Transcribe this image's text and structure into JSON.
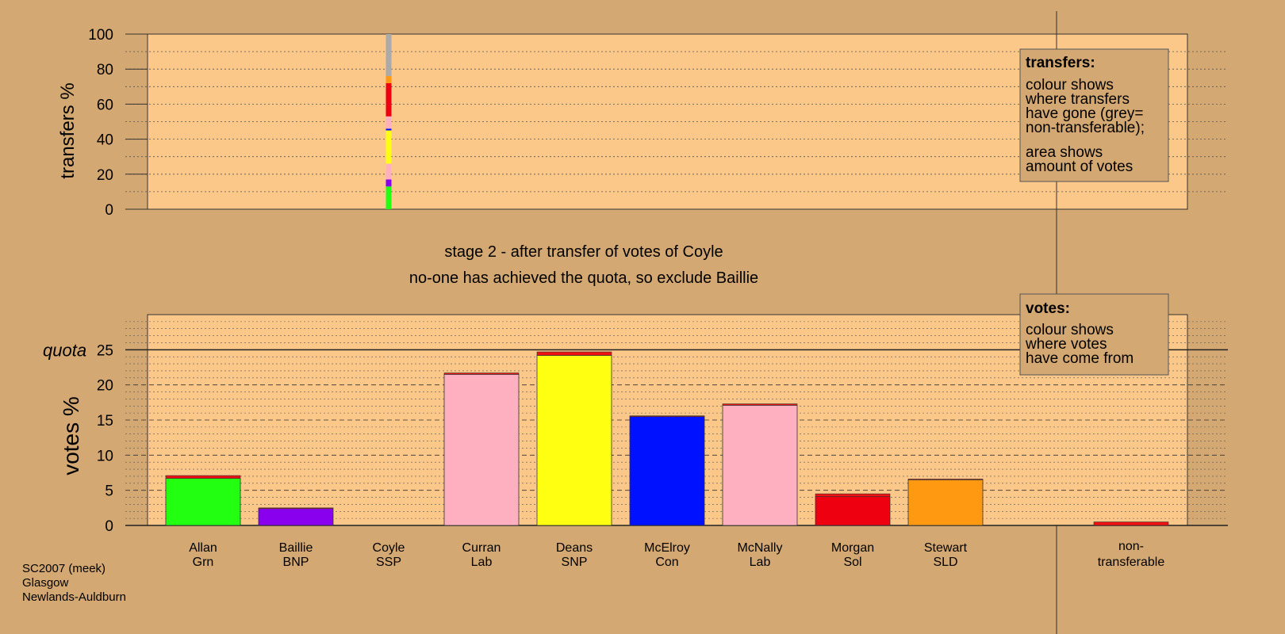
{
  "colors": {
    "page_bg": "#d4a872",
    "panel_bg": "#fcc88a",
    "Grn": "#22ff11",
    "BNP": "#8800ee",
    "SSP": "#ee1111",
    "Lab": "#ffb0c0",
    "SNP": "#ffff11",
    "Con": "#0011ff",
    "Sol": "#ee0011",
    "SLD": "#ff9911",
    "nontransferable": "#aaaaaa"
  },
  "chart_data": [
    {
      "type": "bar",
      "name": "transfers",
      "ylabel": "transfers %",
      "ylim": [
        0,
        100
      ],
      "yticks": [
        0,
        20,
        40,
        60,
        80,
        100
      ],
      "grid": "dotted",
      "column_at": "Coyle",
      "segments": [
        {
          "to": "Allan",
          "value": 13
        },
        {
          "to": "Baillie",
          "value": 4
        },
        {
          "to": "Curran",
          "value": 9
        },
        {
          "to": "Deans",
          "value": 19
        },
        {
          "to": "McElroy",
          "value": 1
        },
        {
          "to": "McNally",
          "value": 7
        },
        {
          "to": "Morgan",
          "value": 19
        },
        {
          "to": "Stewart",
          "value": 4
        },
        {
          "to": "non-transferable",
          "value": 24
        }
      ]
    },
    {
      "type": "bar",
      "name": "votes",
      "ylabel": "votes %",
      "ylim": [
        0,
        30
      ],
      "yticks": [
        0,
        5,
        10,
        15,
        20,
        25
      ],
      "quota": 25,
      "quota_label": "quota",
      "grid": "dashed",
      "candidates": [
        {
          "name": "Allan",
          "party": "Grn",
          "first": 6.7,
          "transferred": 0.4
        },
        {
          "name": "Baillie",
          "party": "BNP",
          "first": 2.4,
          "transferred": 0.1
        },
        {
          "name": "Coyle",
          "party": "SSP",
          "first": 0,
          "transferred": 0
        },
        {
          "name": "Curran",
          "party": "Lab",
          "first": 21.5,
          "transferred": 0.2
        },
        {
          "name": "Deans",
          "party": "SNP",
          "first": 24.2,
          "transferred": 0.5
        },
        {
          "name": "McElroy",
          "party": "Con",
          "first": 15.5,
          "transferred": 0.1
        },
        {
          "name": "McNally",
          "party": "Lab",
          "first": 17.1,
          "transferred": 0.2
        },
        {
          "name": "Morgan",
          "party": "Sol",
          "first": 4.1,
          "transferred": 0.4
        },
        {
          "name": "Stewart",
          "party": "SLD",
          "first": 6.5,
          "transferred": 0.1
        }
      ],
      "nontransferable": {
        "label_line1": "non-",
        "label_line2": "transferable",
        "value": 0.5
      }
    }
  ],
  "text": {
    "stage_line": "stage 2 - after transfer of votes of Coyle",
    "status_line": "no-one has achieved the quota, so exclude Baillie",
    "legend_transfers_title": "transfers:",
    "legend_transfers_lines": [
      "colour shows",
      "where transfers",
      "have gone (grey=",
      "non-transferable);",
      "area shows",
      "amount of votes"
    ],
    "legend_votes_title": "votes:",
    "legend_votes_lines": [
      "colour shows",
      "where votes",
      "have come from"
    ],
    "footer": [
      "SC2007 (meek)",
      "Glasgow",
      "Newlands-Auldburn"
    ]
  }
}
